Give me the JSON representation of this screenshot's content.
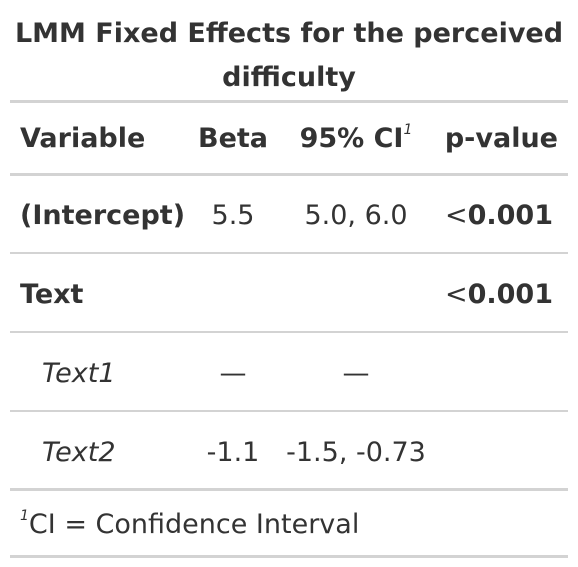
{
  "table": {
    "title_line1": "LMM Fixed Effects for the perceived",
    "title_line2": "difficulty",
    "headers": {
      "variable": "Variable",
      "beta": "Beta",
      "ci": "95% CI",
      "ci_footnote_mark": "1",
      "pvalue": "p-value"
    },
    "rows": [
      {
        "variable": "(Intercept)",
        "beta": "5.5",
        "ci": "5.0, 6.0",
        "p_prefix": "<",
        "p_value": "0.001"
      },
      {
        "variable": "Text",
        "beta": "",
        "ci": "",
        "p_prefix": "<",
        "p_value": "0.001"
      },
      {
        "variable": "Text1",
        "beta": "—",
        "ci": "—",
        "p_prefix": "",
        "p_value": ""
      },
      {
        "variable": "Text2",
        "beta": "-1.1",
        "ci": "-1.5, -0.73",
        "p_prefix": "",
        "p_value": ""
      }
    ],
    "footnote": {
      "mark": "1",
      "text": "CI = Confidence Interval"
    }
  }
}
